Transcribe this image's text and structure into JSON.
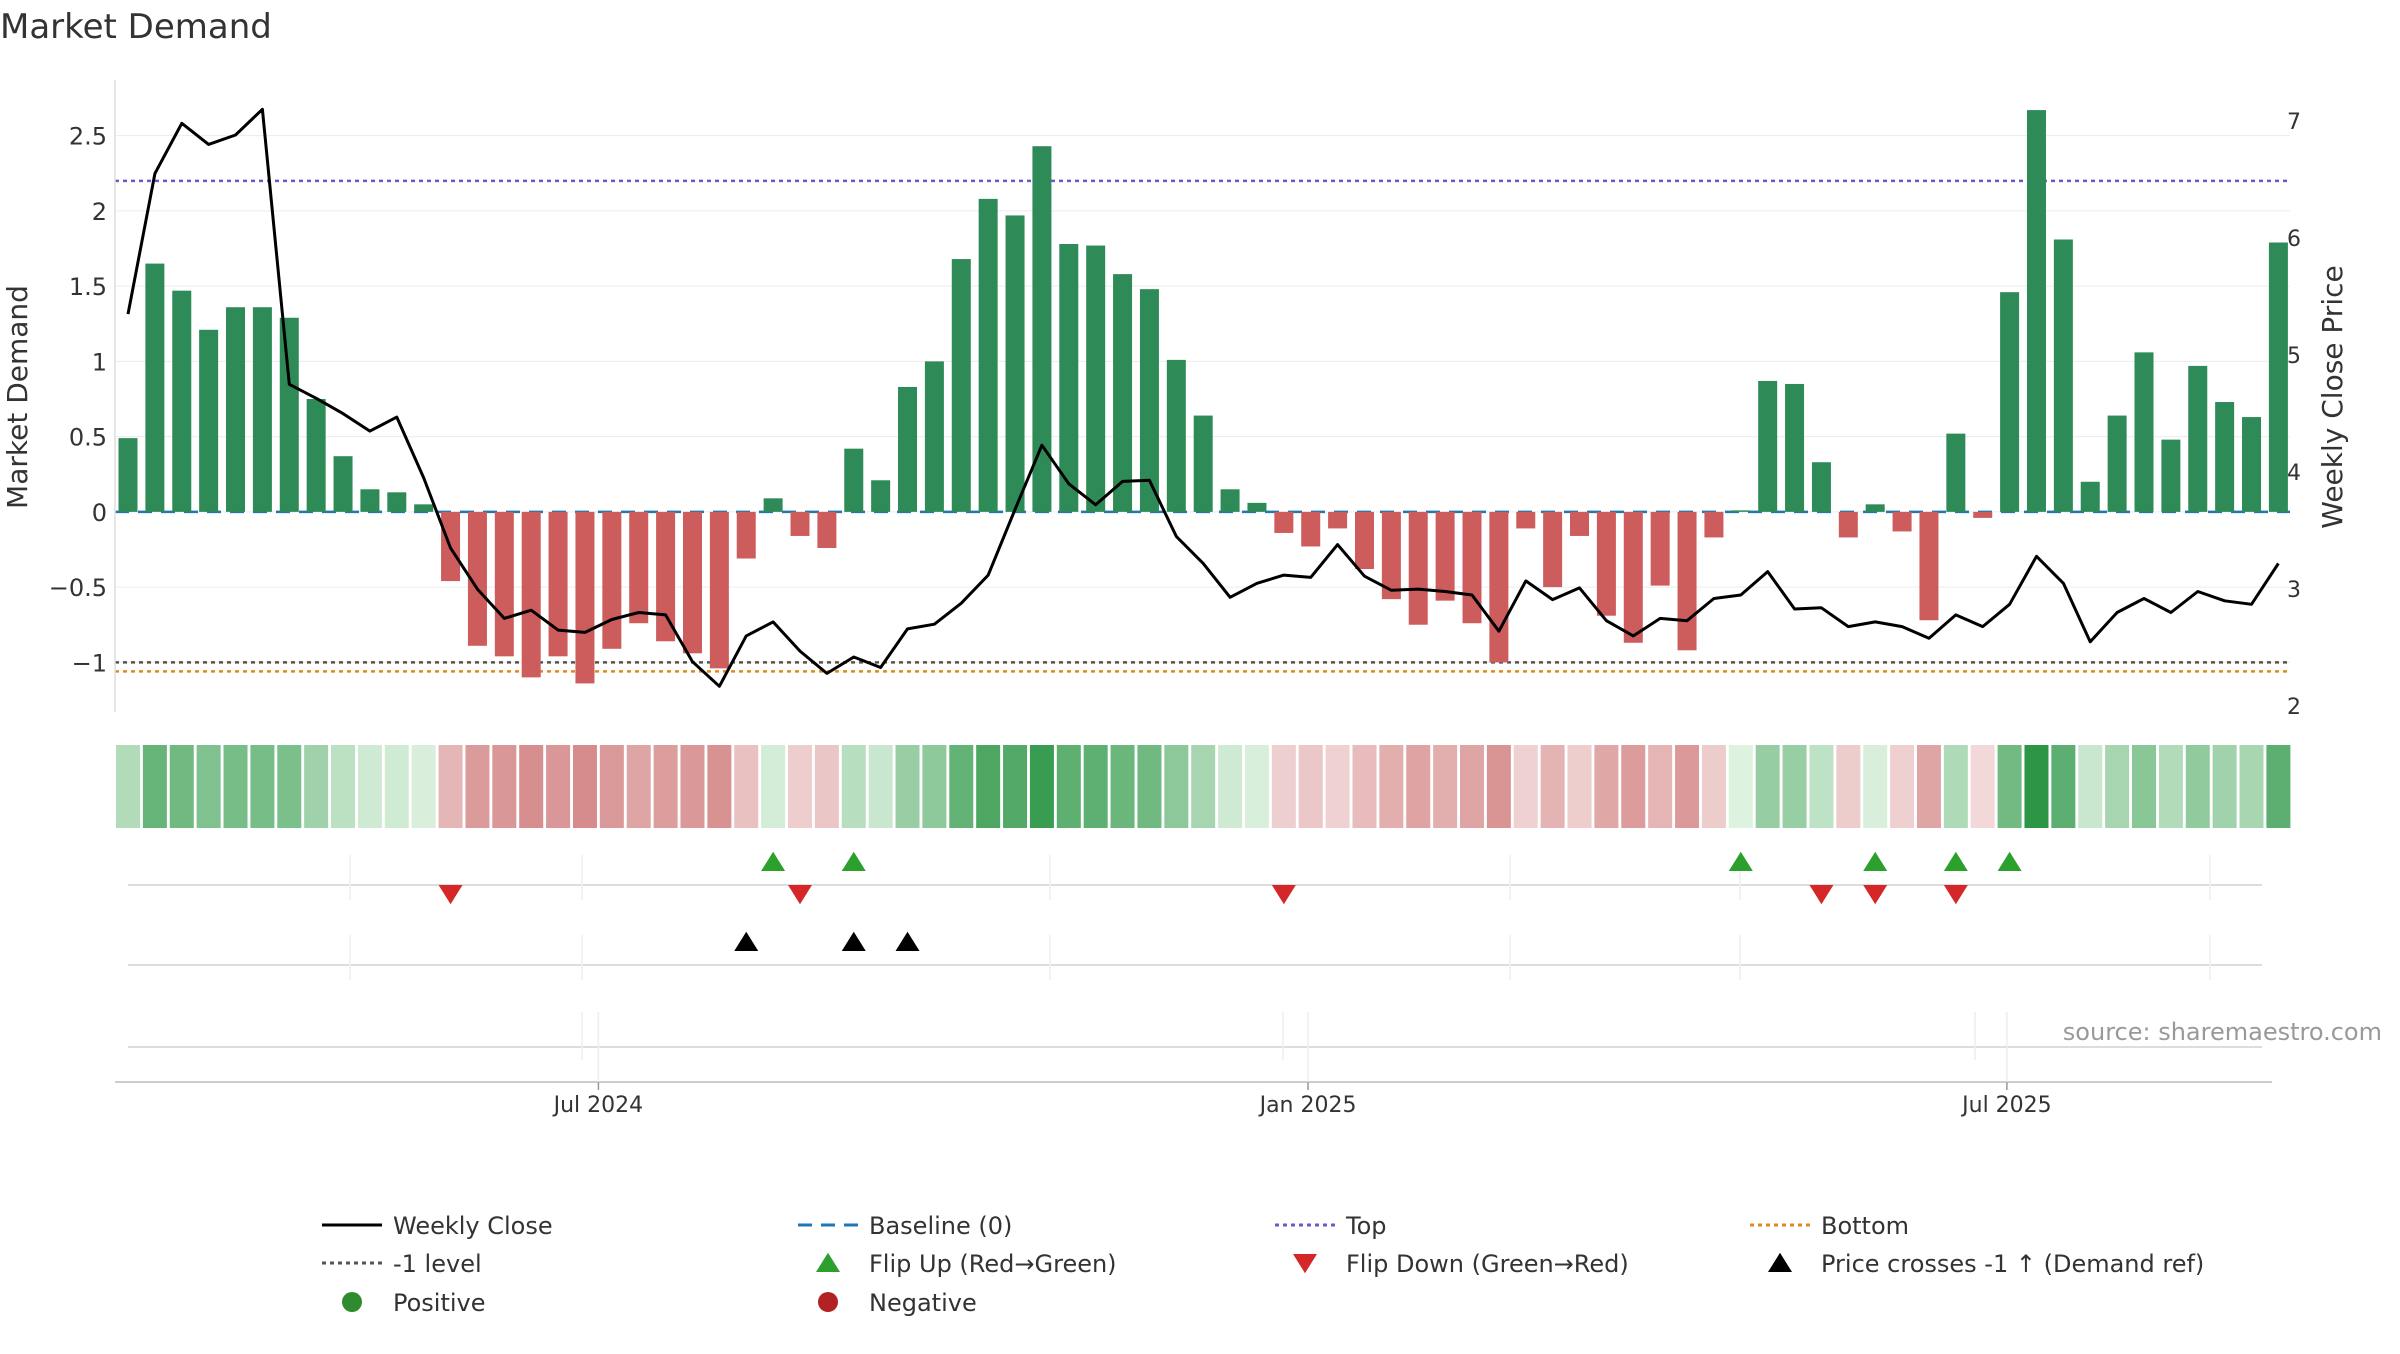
{
  "chart_data": {
    "type": "bar",
    "title": "Market Demand",
    "ylabel": "Market Demand",
    "y2label": "Weekly Close Price",
    "ylim": [
      -1.33,
      2.87
    ],
    "y2lim": [
      1.95,
      7.35
    ],
    "y_ticks": [
      -1,
      -0.5,
      0,
      0.5,
      1,
      1.5,
      2,
      2.5
    ],
    "y_tick_labels": [
      "−1",
      "−0.5",
      "0",
      "0.5",
      "1",
      "1.5",
      "2",
      "2.5"
    ],
    "y2_ticks": [
      2,
      3,
      4,
      5,
      6,
      7
    ],
    "y2_tick_labels": [
      "2",
      "3",
      "4",
      "5",
      "6",
      "7"
    ],
    "x_ticks": [
      {
        "index": 17.5,
        "label": "Jul 2024"
      },
      {
        "index": 43.9,
        "label": "Jan 2025"
      },
      {
        "index": 69.9,
        "label": "Jul 2025"
      }
    ],
    "demand": [
      0.49,
      1.65,
      1.47,
      1.21,
      1.36,
      1.36,
      1.29,
      0.75,
      0.37,
      0.15,
      0.13,
      0.05,
      -0.46,
      -0.89,
      -0.96,
      -1.1,
      -0.96,
      -1.14,
      -0.91,
      -0.74,
      -0.86,
      -0.94,
      -1.04,
      -0.31,
      0.09,
      -0.16,
      -0.24,
      0.42,
      0.21,
      0.83,
      1.0,
      1.68,
      2.08,
      1.97,
      2.43,
      1.78,
      1.77,
      1.58,
      1.48,
      1.01,
      0.64,
      0.15,
      0.06,
      -0.14,
      -0.23,
      -0.11,
      -0.38,
      -0.58,
      -0.75,
      -0.59,
      -0.74,
      -1.0,
      -0.11,
      -0.5,
      -0.16,
      -0.69,
      -0.87,
      -0.49,
      -0.92,
      -0.17,
      0.01,
      0.87,
      0.85,
      0.33,
      -0.17,
      0.05,
      -0.13,
      -0.72,
      0.52,
      -0.04,
      1.46,
      2.67,
      1.81,
      0.2,
      0.64,
      1.06,
      0.48,
      0.97,
      0.73,
      0.63,
      1.79
    ],
    "weekly_close": [
      5.35,
      6.55,
      6.98,
      6.8,
      6.88,
      7.1,
      4.75,
      4.63,
      4.5,
      4.35,
      4.47,
      3.95,
      3.35,
      3.0,
      2.75,
      2.82,
      2.65,
      2.63,
      2.74,
      2.8,
      2.78,
      2.38,
      2.17,
      2.6,
      2.72,
      2.47,
      2.28,
      2.42,
      2.33,
      2.66,
      2.7,
      2.88,
      3.12,
      3.68,
      4.23,
      3.9,
      3.72,
      3.92,
      3.93,
      3.45,
      3.22,
      2.93,
      3.05,
      3.12,
      3.1,
      3.38,
      3.11,
      2.99,
      3.0,
      2.98,
      2.95,
      2.64,
      3.07,
      2.91,
      3.01,
      2.73,
      2.6,
      2.75,
      2.73,
      2.92,
      2.95,
      3.15,
      2.83,
      2.84,
      2.68,
      2.72,
      2.68,
      2.58,
      2.78,
      2.68,
      2.87,
      3.28,
      3.05,
      2.55,
      2.8,
      2.92,
      2.8,
      2.98,
      2.9,
      2.87,
      3.22
    ],
    "top_level": 2.2,
    "bottom_level": -1.06,
    "minus_one_level": -1.0,
    "baseline": 0,
    "flip_up_indices": [
      24,
      27,
      60,
      65,
      68,
      70
    ],
    "flip_down_indices": [
      12,
      25,
      43,
      63,
      65,
      68
    ],
    "price_cross_indices": [
      23,
      27,
      29
    ],
    "source": "source: sharemaestro.com",
    "legend": [
      {
        "label": "Weekly Close",
        "marker": "solid-line",
        "color": "#000000"
      },
      {
        "label": "Baseline (0)",
        "marker": "dashed-line",
        "color": "#1f77b4"
      },
      {
        "label": "Top",
        "marker": "dotted-line",
        "color": "#6a5acd"
      },
      {
        "label": "Bottom",
        "marker": "dotted-line",
        "color": "#e08a1e"
      },
      {
        "label": "-1 level",
        "marker": "dotted-line",
        "color": "#555555"
      },
      {
        "label": "Flip Up (Red→Green)",
        "marker": "triangle-up",
        "color": "#2ca02c"
      },
      {
        "label": "Flip Down (Green→Red)",
        "marker": "triangle-down",
        "color": "#d62728"
      },
      {
        "label": "Price crosses -1 ↑ (Demand ref)",
        "marker": "triangle-up",
        "color": "#000000"
      },
      {
        "label": "Positive",
        "marker": "circle",
        "color": "#2e8b2e"
      },
      {
        "label": "Negative",
        "marker": "circle",
        "color": "#b22222"
      }
    ],
    "colors": {
      "positive_bar": "#2e8b57",
      "negative_bar": "#cd5c5c",
      "flip_up": "#2ca02c",
      "flip_down": "#d62728",
      "price_cross": "#000000",
      "weekly_close": "#000000"
    }
  }
}
